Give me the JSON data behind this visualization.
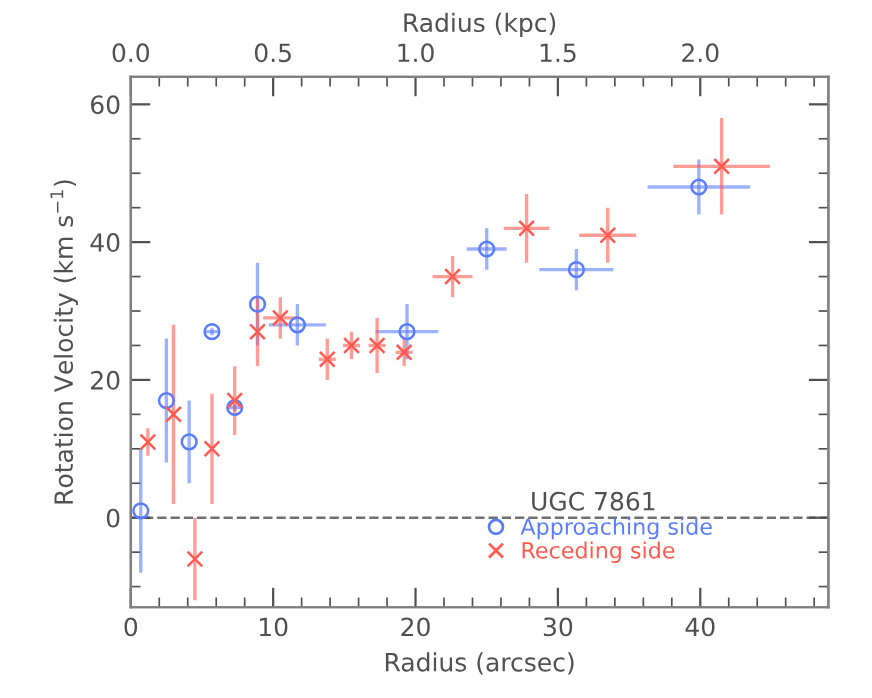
{
  "chart_data": {
    "type": "scatter",
    "xlabel": "Radius (arcsec)",
    "ylabel": "Rotation Velocity (km s$^{−1}$)",
    "x2label": "Radius (kpc)",
    "legend_title": "UGC 7861",
    "xlim": [
      0,
      49
    ],
    "xticks": [
      0,
      10,
      20,
      30,
      40
    ],
    "x2lim": [
      0,
      2.45
    ],
    "x2ticks": [
      {
        "value": 0,
        "label": "0.0"
      },
      0.5,
      {
        "value": 1,
        "label": "1.0"
      },
      1.5,
      {
        "value": 2,
        "label": "2.0"
      }
    ],
    "ylim": [
      -13,
      64
    ],
    "yticks": [
      0,
      20,
      40,
      60
    ],
    "grid": false,
    "legend": "bottom right",
    "ref_lines": [
      {
        "axis": "y",
        "value": 0,
        "label": null,
        "color": "#707070",
        "line_style": "dashed"
      }
    ],
    "series": [
      {
        "name": "Approaching side",
        "color": "#5a7dff",
        "marker": "circle",
        "x": [
          0.7,
          2.5,
          4.1,
          5.7,
          7.3,
          8.9,
          11.7,
          19.4,
          25.0,
          31.3,
          39.9
        ],
        "values": [
          1,
          17,
          11,
          27,
          16,
          31,
          28,
          27,
          39,
          36,
          48
        ],
        "errors": [
          9,
          9,
          6,
          0.5,
          0.5,
          6,
          3,
          4,
          3,
          3,
          4
        ],
        "xerrors": [
          null,
          null,
          null,
          0.5,
          0.5,
          null,
          2,
          2.2,
          1.4,
          2.6,
          3.6
        ]
      },
      {
        "name": "Receding side",
        "color": "#ff5a50",
        "marker": "cross",
        "x": [
          1.2,
          3.0,
          4.5,
          5.7,
          7.3,
          8.9,
          10.5,
          13.8,
          15.5,
          17.3,
          19.2,
          22.6,
          27.8,
          33.5,
          41.5
        ],
        "values": [
          11,
          15,
          -6,
          10,
          17,
          27,
          29,
          23,
          25,
          25,
          24,
          35,
          42,
          41,
          51
        ],
        "errors": [
          2,
          13,
          6,
          8,
          5,
          5,
          3,
          3,
          2,
          4,
          2,
          3,
          5,
          4,
          7
        ],
        "xerrors": [
          null,
          null,
          null,
          null,
          null,
          null,
          1.2,
          0.6,
          0.6,
          0.6,
          0.6,
          1.4,
          1.6,
          2,
          3.4
        ]
      }
    ]
  }
}
